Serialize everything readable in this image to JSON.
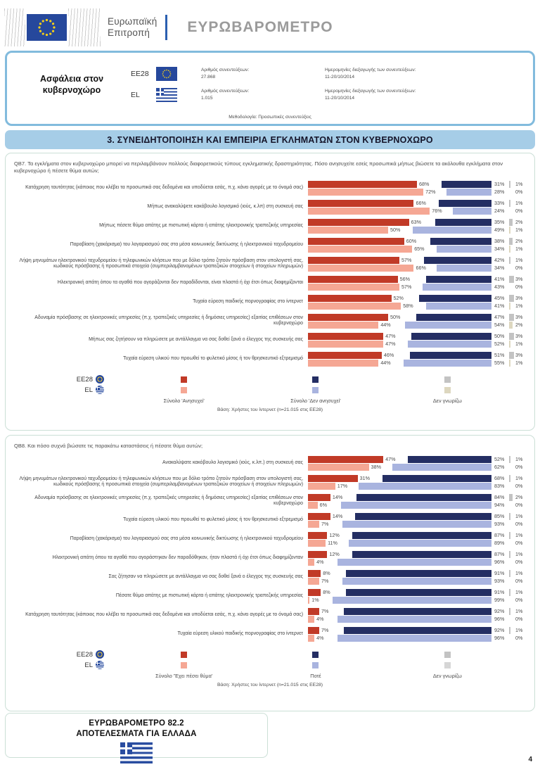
{
  "header": {
    "commission_line1": "Ευρωπαϊκή",
    "commission_line2": "Επιτροπή",
    "title": "ΕΥΡΩΒΑΡΟΜΕΤΡΟ"
  },
  "info_box": {
    "topic_line1": "Ασφάλεια στον",
    "topic_line2": "κυβερνοχώρο",
    "rows": [
      {
        "code": "EE28",
        "flag": "eu",
        "interviews_label": "Αριθμός συνεντεύξεων:",
        "interviews": "27.868",
        "dates_label": "Ημερομηνίες διεξαγωγής των συνεντεύξεων:",
        "dates": "11-20/10/2014"
      },
      {
        "code": "EL",
        "flag": "el",
        "interviews_label": "Αριθμός συνεντεύξεων:",
        "interviews": "1.015",
        "dates_label": "Ημερομηνίες διεξαγωγής των συνεντεύξεων:",
        "dates": "11-20/10/2014"
      }
    ],
    "methodology": "Μεθοδολογία: Προσωπικές συνεντεύξεις"
  },
  "section_title": "3. ΣΥΝΕΙΔΗΤΟΠΟΙΗΣΗ ΚΑΙ ΕΜΠΕΙΡΙΑ ΕΓΚΛΗΜΑΤΩΝ ΣΤΟΝ ΚΥΒΕΡΝΟΧΩΡΟ",
  "colors": {
    "ee28_pos": "#c13a27",
    "ee28_neg": "#242e63",
    "ee28_dk": "#c3c3c3",
    "el_pos": "#f5a794",
    "el_neg": "#a9b4df",
    "el_dk_qb7": "#ddd7bf",
    "el_dk_qb8": "#d6d6d6",
    "section_bg": "#a6cde7",
    "info_border": "#82bbdd",
    "panel_border": "#cbdfd6",
    "flag_blue": "#26489c",
    "star_yellow": "#f7d117"
  },
  "chart_data": [
    {
      "id": "qb7",
      "type": "bar",
      "question": "QB7. Τα εγκλήματα στον κυβερνοχώρο μπορεί να περιλαμβάνουν πολλούς διαφορετικούς τύπους εγκληματικής δραστηριότητας. Πόσο ανησυχείτε εσείς προσωπικά μήπως βιώσετε τα ακόλουθα εγκλήματα στον κυβερνοχώρο ή πέσετε θύμα αυτών;",
      "columns": [
        "Σύνολο 'Ανησυχεί'",
        "Σύνολο 'Δεν ανησυχεί'",
        "Δεν γνωρίζω"
      ],
      "series_names": [
        "EE28",
        "EL"
      ],
      "items": [
        {
          "label": "Κατάχρηση ταυτότητας (κάποιος που κλέβει τα προσωπικά σας δεδομένα και υποδύεται εσάς, π.χ. κάνει αγορές με το όνομά σας)",
          "ee28": [
            68,
            31,
            1
          ],
          "el": [
            72,
            28,
            0
          ]
        },
        {
          "label": "Μήπως ανακαλύψετε κακόβουλο λογισμικό (ιούς, κ.λπ) στη συσκευή σας",
          "ee28": [
            66,
            33,
            1
          ],
          "el": [
            76,
            24,
            0
          ]
        },
        {
          "label": "Μήπως πέσετε θύμα απάτης με πιστωτική κάρτα ή απάτης ηλεκτρονικής τραπεζικής υπηρεσίας",
          "ee28": [
            63,
            35,
            2
          ],
          "el": [
            50,
            49,
            1
          ]
        },
        {
          "label": "Παραβίαση (χακάρισμα) του λογαριασμού σας στα μέσα κοινωνικής δικτύωσης ή ηλεκτρονικού ταχυδρομείου",
          "ee28": [
            60,
            38,
            2
          ],
          "el": [
            65,
            34,
            1
          ]
        },
        {
          "label": "Λήψη μηνυμάτων ηλεκτρονικού ταχυδρομείου ή τηλεφωνικών κλήσεων που με δόλιο τρόπο ζητούν πρόσβαση στον υπολογιστή σας, κωδικούς πρόσβασης ή προσωπικά στοιχεία (συμπεριλαμβανομένων τραπεζικών στοιχείων ή στοιχείων πληρωμών)",
          "ee28": [
            57,
            42,
            1
          ],
          "el": [
            66,
            34,
            0
          ]
        },
        {
          "label": "Ηλεκτρονική απάτη όπου τα αγαθά που αγοράζονται δεν παραδίδονται, είναι πλαστά ή όχι έτσι όπως διαφημίζονται",
          "ee28": [
            56,
            41,
            3
          ],
          "el": [
            57,
            43,
            0
          ]
        },
        {
          "label": "Τυχαία εύρεση παιδικής πορνογραφίας στο ίντερνετ",
          "ee28": [
            52,
            45,
            3
          ],
          "el": [
            58,
            41,
            1
          ]
        },
        {
          "label": "Αδυναμία πρόσβασης σε ηλεκτρονικές υπηρεσίες (π.χ. τραπεζικές υπηρεσίες ή δημόσιες υπηρεσίες) εξαιτίας επιθέσεων στον κυβερνοχώρο",
          "ee28": [
            50,
            47,
            3
          ],
          "el": [
            44,
            54,
            2
          ]
        },
        {
          "label": "Μήπως σας ζητήσουν να πληρώσετε με αντάλλαγμα να σας δοθεί ξανά ο έλεγχος της συσκευής σας",
          "ee28": [
            47,
            50,
            3
          ],
          "el": [
            47,
            52,
            1
          ]
        },
        {
          "label": "Τυχαία εύρεση υλικού που προωθεί το φυλετικό μίσος ή τον θρησκευτικό εξτρεμισμό",
          "ee28": [
            46,
            51,
            3
          ],
          "el": [
            44,
            55,
            1
          ]
        }
      ],
      "legend": {
        "ee28": "EE28",
        "el": "EL",
        "cols": [
          "Σύνολο 'Ανησυχεί'",
          "Σύνολο 'Δεν ανησυχεί'",
          "Δεν γνωρίζω"
        ]
      },
      "base": "Βάση: Χρήστες του ίντερνετ (n=21.015 στις EE28)"
    },
    {
      "id": "qb8",
      "type": "bar",
      "question": "QB8. Και πόσο συχνά βιώσατε τις παρακάτω καταστάσεις ή πέσατε θύμα αυτών;",
      "columns": [
        "Σύνολο 'Έχει πέσει θύμα'",
        "Ποτέ",
        "Δεν γνωρίζω"
      ],
      "series_names": [
        "EE28",
        "EL"
      ],
      "items": [
        {
          "label": "Ανακαλύψατε κακόβουλο λογισμικό (ιούς, κ.λπ.) στη συσκευή σας",
          "ee28": [
            47,
            52,
            1
          ],
          "el": [
            38,
            62,
            0
          ]
        },
        {
          "label": "Λήψη μηνυμάτων ηλεκτρονικού ταχυδρομείου ή τηλεφωνικών κλήσεων που με δόλιο τρόπο ζητούν πρόσβαση στον υπολογιστή σας, κωδικούς πρόσβασης ή προσωπικά στοιχεία (συμπεριλαμβανομένων τραπεζικών στοιχείων ή στοιχείων πληρωμών)",
          "ee28": [
            31,
            68,
            1
          ],
          "el": [
            17,
            83,
            0
          ]
        },
        {
          "label": "Αδυναμία πρόσβασης σε ηλεκτρονικές υπηρεσίες (π.χ. τραπεζικές υπηρεσίες ή δημόσιες υπηρεσίες) εξαιτίας επιθέσεων στον κυβερνοχώρο",
          "ee28": [
            14,
            84,
            2
          ],
          "el": [
            6,
            94,
            0
          ]
        },
        {
          "label": "Τυχαία εύρεση υλικού που προωθεί το φυλετικό μίσος ή τον θρησκευτικό εξτρεμισμό",
          "ee28": [
            14,
            85,
            1
          ],
          "el": [
            7,
            93,
            0
          ]
        },
        {
          "label": "Παραβίαση (χακάρισμα) του λογαριασμού σας στα μέσα κοινωνικής δικτύωσης ή ηλεκτρονικού ταχυδρομείου",
          "ee28": [
            12,
            87,
            1
          ],
          "el": [
            11,
            89,
            0
          ]
        },
        {
          "label": "Ηλεκτρονική απάτη όπου τα αγαθά που αγοράστηκαν δεν παραδόθηκαν, ήταν πλαστά ή όχι έτσι όπως διαφημίζονταν",
          "ee28": [
            12,
            87,
            1
          ],
          "el": [
            4,
            96,
            0
          ]
        },
        {
          "label": "Σας ζήτησαν να πληρώσετε με αντάλλαγμα να σας δοθεί ξανά ο έλεγχος της συσκευής σας",
          "ee28": [
            8,
            91,
            1
          ],
          "el": [
            7,
            93,
            0
          ]
        },
        {
          "label": "Πέσατε θύμα απάτης με πιστωτική κάρτα ή απάτης ηλεκτρονικής τραπεζικής υπηρεσίας",
          "ee28": [
            8,
            91,
            1
          ],
          "el": [
            1,
            99,
            0
          ]
        },
        {
          "label": "Κατάχρηση ταυτότητας (κάποιος που κλέβει τα προσωπικά σας δεδομένα και υποδύεται εσάς, π.χ. κάνει αγορές με το όνομά σας)",
          "ee28": [
            7,
            92,
            1
          ],
          "el": [
            4,
            96,
            0
          ]
        },
        {
          "label": "Τυχαία εύρεση υλικού παιδικής πορνογραφίας στο ίντερνετ",
          "ee28": [
            7,
            92,
            1
          ],
          "el": [
            4,
            96,
            0
          ]
        }
      ],
      "legend": {
        "ee28": "EE28",
        "el": "EL",
        "cols": [
          "Σύνολο 'Έχει πέσει θύμα'",
          "Ποτέ",
          "Δεν γνωρίζω"
        ]
      },
      "base": "Βάση: Χρήστες του ίντερνετ (n=21.015 στις EE28)"
    }
  ],
  "footer": {
    "line1": "ΕΥΡΩΒΑΡΟΜΕΤΡΟ 82.2",
    "line2": "ΑΠΟΤΕΛΕΣΜΑΤΑ ΓΙΑ ΕΛΛΑΔΑ",
    "page": "4"
  }
}
